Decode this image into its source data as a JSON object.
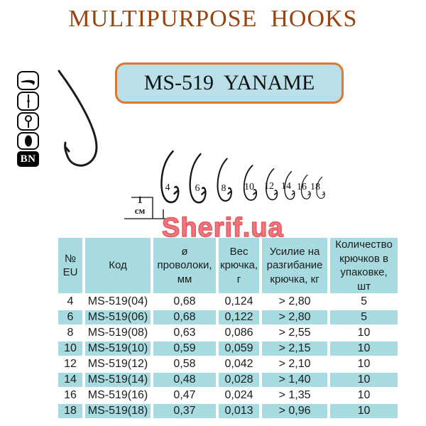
{
  "title": "MULTIPURPOSE  HOOKS",
  "badge": {
    "label": "MS-519  YANAME"
  },
  "watermark": "Sherif.ua",
  "sidebar": {
    "icons": [
      "hook-point-icon",
      "straight-shank-icon",
      "ringed-eye-icon",
      "forged-bend-icon"
    ],
    "finish_label": "BN"
  },
  "scale_marker": {
    "value": "1",
    "unit": "см"
  },
  "hook_row": {
    "sizes": [
      "4",
      "6",
      "8",
      "10",
      "12",
      "14",
      "16",
      "18"
    ]
  },
  "table": {
    "headers": [
      "№\nEU",
      "Код",
      "ø\nпроволоки,\nмм",
      "Вес\nкрючка,\nг",
      "Усилие на\nразгибание\nкрючка, кг",
      "Количество\nкрючков в\nупаковке,\nшт"
    ],
    "rows": [
      [
        "4",
        "MS-519(04)",
        "0,68",
        "0,124",
        "> 2,80",
        "5"
      ],
      [
        "6",
        "MS-519(06)",
        "0,68",
        "0,122",
        "> 2,80",
        "5"
      ],
      [
        "8",
        "MS-519(08)",
        "0,63",
        "0,086",
        "> 2,55",
        "10"
      ],
      [
        "10",
        "MS-519(10)",
        "0,59",
        "0,059",
        "> 2,15",
        "10"
      ],
      [
        "12",
        "MS-519(12)",
        "0,58",
        "0,042",
        "> 2,10",
        "10"
      ],
      [
        "14",
        "MS-519(14)",
        "0,48",
        "0,028",
        "> 1,40",
        "10"
      ],
      [
        "16",
        "MS-519(16)",
        "0,47",
        "0,024",
        "> 1,35",
        "10"
      ],
      [
        "18",
        "MS-519(18)",
        "0,37",
        "0,013",
        "> 0,96",
        "10"
      ]
    ]
  },
  "colors": {
    "title-brown": "#9a430e",
    "badge-fill": "#b9dfe9",
    "badge-border": "#e0772e",
    "table-teal": "#a7dbdf",
    "watermark-pink": "#f0757c",
    "watermark-outline": "#e25b63",
    "ink": "#1c1c1c"
  }
}
